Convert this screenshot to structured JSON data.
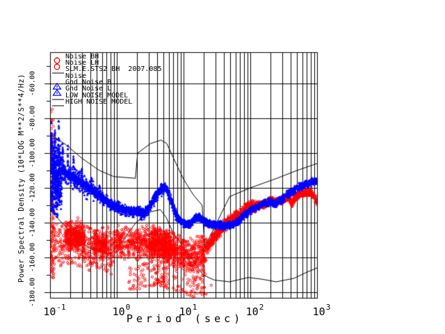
{
  "chart_data": {
    "type": "scatter",
    "title": "",
    "xlabel": "Period (sec)",
    "ylabel": "Power Spectral Density (10*LOG M**2/S**4/Hz)",
    "x_scale": "log",
    "xlim": [
      0.1,
      1000
    ],
    "ylim": [
      -183.2,
      -42
    ],
    "grid": true,
    "x_ticks": [
      {
        "base": "10",
        "exp": "-1",
        "decade": -1
      },
      {
        "base": "10",
        "exp": "0",
        "decade": 0
      },
      {
        "base": "10",
        "exp": "1",
        "decade": 1
      },
      {
        "base": "10",
        "exp": "2",
        "decade": 2
      },
      {
        "base": "10",
        "exp": "3",
        "decade": 3
      }
    ],
    "y_ticks": [
      {
        "value": -60,
        "label": "-60.00"
      },
      {
        "value": -80,
        "label": "-80.00"
      },
      {
        "value": -100,
        "label": "-100.00"
      },
      {
        "value": -120,
        "label": "-120.00"
      },
      {
        "value": -140,
        "label": "-140.00"
      },
      {
        "value": -160,
        "label": "-160.00"
      },
      {
        "value": -180,
        "label": "-180.00"
      }
    ],
    "legend": {
      "position": "top-left-inside",
      "items": [
        {
          "symbol": "red-circle",
          "label": "Noise BH"
        },
        {
          "symbol": "red-circle",
          "label": "Noise LH"
        },
        {
          "symbol": "black-line",
          "label": "SLM.E.STS2 BH  2007.085"
        },
        {
          "symbol": "none",
          "label": "Noise"
        },
        {
          "symbol": "blue-triangle",
          "label": "Gnd Noise B"
        },
        {
          "symbol": "blue-triangle",
          "label": "Gnd Noise L"
        },
        {
          "symbol": "black-line",
          "label": "LOW NOISE MODEL"
        },
        {
          "symbol": "black-line",
          "label": "HIGH NOISE MODEL"
        }
      ]
    },
    "colors": {
      "red_series": "#ff0000",
      "blue_series": "#0000ff",
      "axis": "#000000",
      "background": "#ffffff"
    },
    "series": [
      {
        "name": "Noise BH/LH (red circles)",
        "type": "scatter",
        "marker": "circle",
        "color": "#ff0000",
        "trend": [
          [
            0.1,
            -150
          ],
          [
            0.15,
            -149
          ],
          [
            0.2,
            -147.5
          ],
          [
            0.3,
            -149
          ],
          [
            0.5,
            -152
          ],
          [
            0.7,
            -153
          ],
          [
            1,
            -150.5
          ],
          [
            2,
            -152
          ],
          [
            3,
            -150
          ],
          [
            4,
            -150
          ],
          [
            5,
            -151
          ],
          [
            7,
            -154
          ],
          [
            10,
            -156
          ],
          [
            14,
            -158
          ],
          [
            18,
            -156.5
          ],
          [
            22,
            -155
          ],
          [
            30,
            -147.5
          ],
          [
            40,
            -142
          ],
          [
            49,
            -139
          ],
          [
            60,
            -137
          ],
          [
            70,
            -135.5
          ],
          [
            85,
            -132.5
          ],
          [
            100,
            -131
          ],
          [
            130,
            -130
          ],
          [
            160,
            -129.5
          ],
          [
            200,
            -127.5
          ],
          [
            250,
            -128
          ],
          [
            300,
            -127
          ],
          [
            350,
            -125.5
          ],
          [
            390,
            -126
          ],
          [
            420,
            -129
          ],
          [
            460,
            -126
          ],
          [
            520,
            -124
          ],
          [
            600,
            -123
          ],
          [
            700,
            -122.5
          ],
          [
            780,
            -122.3
          ],
          [
            850,
            -123.5
          ],
          [
            920,
            -125.5
          ],
          [
            990,
            -127.5
          ]
        ],
        "regions": [
          {
            "t": [
              0.101,
              0.116
            ],
            "n": 70,
            "dv": [
              -22,
              10
            ],
            "shape": "uniform"
          },
          {
            "t": [
              0.101,
              0.113
            ],
            "n": 50,
            "dv": [
              10,
              78
            ],
            "shape": "uniform"
          },
          {
            "t": [
              0.115,
              0.9
            ],
            "n": 420,
            "dv": [
              -18,
              12
            ],
            "shape": "gauss"
          },
          {
            "t": [
              0.17,
              0.33
            ],
            "n": 300,
            "dv": [
              -9,
              10
            ],
            "shape": "gauss"
          },
          {
            "t": [
              0.45,
              0.7
            ],
            "n": 120,
            "dv": [
              -8,
              8
            ],
            "shape": "gauss"
          },
          {
            "t": [
              0.9,
              3.2
            ],
            "n": 360,
            "dv": [
              -11,
              10
            ],
            "shape": "gauss"
          },
          {
            "t": [
              1.5,
              3.5
            ],
            "n": 50,
            "dv": [
              -27,
              -12
            ],
            "shape": "uniform"
          },
          {
            "t": [
              3.2,
              6.5
            ],
            "n": 520,
            "dv": [
              -13,
              9
            ],
            "shape": "gauss"
          },
          {
            "t": [
              3.5,
              6
            ],
            "n": 60,
            "dv": [
              -26,
              -13
            ],
            "shape": "uniform"
          },
          {
            "t": [
              6.5,
              22
            ],
            "n": 420,
            "dv": [
              -13,
              10
            ],
            "shape": "gauss"
          },
          {
            "t": [
              7,
              22
            ],
            "n": 60,
            "dv": [
              -26,
              -13
            ],
            "shape": "uniform"
          },
          {
            "t": [
              22,
              120
            ],
            "n": 650,
            "dv": [
              -4,
              4
            ],
            "shape": "gauss"
          },
          {
            "t": [
              120,
              700
            ],
            "n": 850,
            "dv": [
              -2.4,
              2.4
            ],
            "shape": "gauss"
          },
          {
            "t": [
              700,
              1000
            ],
            "n": 90,
            "dv": [
              -2.6,
              2.6
            ],
            "shape": "gauss"
          }
        ],
        "dots": [
          [
            5.5,
            -176
          ],
          [
            7,
            -177.5
          ],
          [
            9,
            -179
          ],
          [
            11,
            -180
          ],
          [
            13,
            -179.5
          ],
          [
            16,
            -178
          ],
          [
            20,
            -177.5
          ],
          [
            26,
            -176
          ],
          [
            2.2,
            -178
          ],
          [
            2.6,
            -176.5
          ]
        ]
      },
      {
        "name": "Gnd Noise B/L (blue triangles)",
        "type": "scatter",
        "marker": "triangle",
        "color": "#0000ff",
        "trend": [
          [
            0.1,
            -103
          ],
          [
            0.12,
            -106
          ],
          [
            0.15,
            -109.5
          ],
          [
            0.2,
            -112.5
          ],
          [
            0.3,
            -117
          ],
          [
            0.45,
            -122
          ],
          [
            0.65,
            -126.5
          ],
          [
            0.9,
            -130.5
          ],
          [
            1.3,
            -132.5
          ],
          [
            2,
            -133.5
          ],
          [
            2.6,
            -134.5
          ],
          [
            3.2,
            -130
          ],
          [
            4,
            -123.5
          ],
          [
            5,
            -119.5
          ],
          [
            5.8,
            -121.5
          ],
          [
            6.6,
            -128
          ],
          [
            7.5,
            -134
          ],
          [
            8.5,
            -138
          ],
          [
            9.5,
            -139.5
          ],
          [
            11,
            -141
          ],
          [
            13,
            -140.5
          ],
          [
            15,
            -137.5
          ],
          [
            17,
            -136.5
          ],
          [
            19,
            -138.5
          ],
          [
            22,
            -140
          ],
          [
            28,
            -141
          ],
          [
            40,
            -141.5
          ],
          [
            55,
            -141
          ],
          [
            70,
            -138
          ],
          [
            90,
            -134.5
          ],
          [
            120,
            -131
          ],
          [
            160,
            -129
          ],
          [
            200,
            -128
          ],
          [
            240,
            -129
          ],
          [
            280,
            -127
          ],
          [
            320,
            -126
          ],
          [
            350,
            -124
          ],
          [
            400,
            -122.5
          ],
          [
            480,
            -120.5
          ],
          [
            580,
            -119
          ],
          [
            700,
            -117.5
          ],
          [
            850,
            -116.5
          ],
          [
            1000,
            -116.2
          ]
        ],
        "regions": [
          {
            "t": [
              0.101,
              0.15
            ],
            "n": 480,
            "dv": [
              -24,
              16
            ],
            "shape": "gauss"
          },
          {
            "t": [
              0.101,
              0.13
            ],
            "n": 80,
            "dv": [
              -30,
              -15
            ],
            "shape": "uniform"
          },
          {
            "t": [
              0.15,
              0.45
            ],
            "n": 280,
            "dv": [
              -8,
              7
            ],
            "shape": "gauss"
          },
          {
            "t": [
              0.15,
              1000
            ],
            "n": 2400,
            "dv": [
              -2.6,
              2.6
            ],
            "shape": "gauss"
          },
          {
            "t": [
              0.45,
              8
            ],
            "n": 500,
            "dv": [
              -4.5,
              4
            ],
            "shape": "gauss"
          },
          {
            "t": [
              8,
              80
            ],
            "n": 400,
            "dv": [
              -2.4,
              2.4
            ],
            "shape": "gauss"
          }
        ],
        "spikes": [
          {
            "t": 0.105,
            "dv": 22,
            "n": 24
          },
          {
            "t": 0.118,
            "dv": 19,
            "n": 20
          },
          {
            "t": 0.135,
            "dv": 27,
            "n": 24
          },
          {
            "t": 0.155,
            "dv": 20,
            "n": 18
          },
          {
            "t": 0.185,
            "dv": 16,
            "n": 16
          },
          {
            "t": 0.225,
            "dv": 12,
            "n": 14
          },
          {
            "t": 0.3,
            "dv": 10,
            "n": 12
          },
          {
            "t": 0.42,
            "dv": 8,
            "n": 10
          },
          {
            "t": 0.55,
            "dv": 6,
            "n": 10
          }
        ]
      },
      {
        "name": "LOW NOISE MODEL",
        "type": "line",
        "color": "#000000",
        "points": [
          [
            0.1,
            -133
          ],
          [
            0.16,
            -141
          ],
          [
            0.26,
            -150
          ],
          [
            0.45,
            -156
          ],
          [
            0.8,
            -158
          ],
          [
            1.2,
            -151
          ],
          [
            1.93,
            -140
          ],
          [
            3,
            -134
          ],
          [
            4.5,
            -132.5
          ],
          [
            5.5,
            -137
          ],
          [
            7,
            -146
          ],
          [
            9.5,
            -153
          ],
          [
            13,
            -160
          ],
          [
            19.5,
            -170
          ],
          [
            29,
            -173
          ],
          [
            49,
            -174
          ],
          [
            93,
            -171.5
          ],
          [
            150,
            -172.5
          ],
          [
            244,
            -174
          ],
          [
            450,
            -172
          ],
          [
            700,
            -168.5
          ],
          [
            1000,
            -166
          ]
        ]
      },
      {
        "name": "HIGH NOISE MODEL",
        "type": "line",
        "color": "#000000",
        "points": [
          [
            0.1,
            -89
          ],
          [
            0.17,
            -95
          ],
          [
            0.3,
            -103
          ],
          [
            0.55,
            -110
          ],
          [
            0.9,
            -113.5
          ],
          [
            1.9,
            -114.5
          ],
          [
            2.05,
            -100
          ],
          [
            3.2,
            -94.5
          ],
          [
            4.6,
            -92.5
          ],
          [
            5.6,
            -94.5
          ],
          [
            7.5,
            -105
          ],
          [
            10,
            -115
          ],
          [
            14,
            -124
          ],
          [
            19,
            -130
          ],
          [
            20.7,
            -154
          ],
          [
            49,
            -125
          ],
          [
            100,
            -120
          ],
          [
            250,
            -114.5
          ],
          [
            500,
            -110
          ],
          [
            1000,
            -106
          ]
        ]
      }
    ]
  }
}
